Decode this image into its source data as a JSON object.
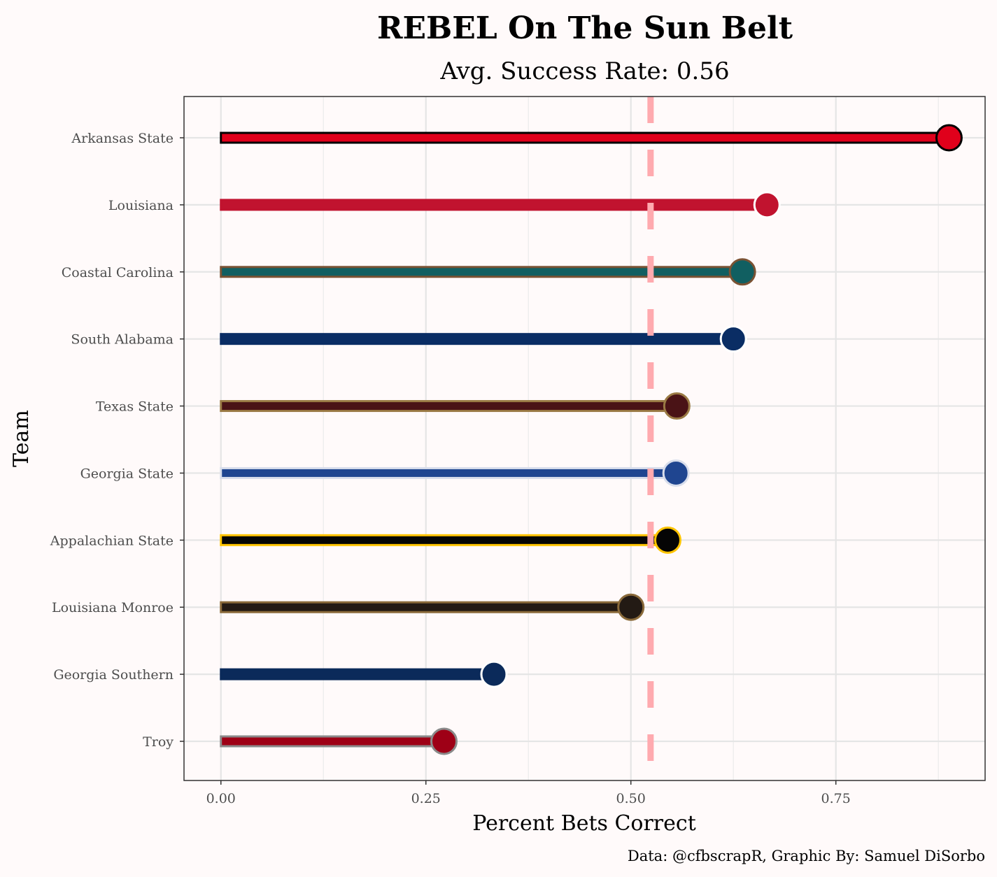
{
  "chart_data": {
    "type": "bar",
    "orientation": "horizontal",
    "title": "REBEL On The Sun Belt",
    "subtitle": "Avg. Success Rate: 0.56",
    "xlabel": "Percent Bets Correct",
    "ylabel": "Team",
    "caption": "Data: @cfbscrapR, Graphic By: Samuel DiSorbo",
    "xlim": [
      -0.045,
      0.932
    ],
    "xticks": [
      0,
      0.25,
      0.5,
      0.75
    ],
    "xtick_labels": [
      "0.00",
      "0.25",
      "0.50",
      "0.75"
    ],
    "grid": true,
    "reference_line": {
      "value": 0.524,
      "style": "dashed",
      "color": "#FFAAAF"
    },
    "categories": [
      "Arkansas State",
      "Louisiana",
      "Coastal Carolina",
      "South Alabama",
      "Texas State",
      "Georgia State",
      "Appalachian State",
      "Louisiana Monroe",
      "Georgia Southern",
      "Troy"
    ],
    "values": [
      0.888,
      0.666,
      0.636,
      0.625,
      0.556,
      0.555,
      0.545,
      0.5,
      0.333,
      0.272
    ],
    "fill_colors": [
      "#E0001B",
      "#C1132F",
      "#115F61",
      "#0A2D64",
      "#4A1316",
      "#1F4590",
      "#050505",
      "#231A14",
      "#0B2A5A",
      "#9E0016"
    ],
    "outline_colors": [
      "#000000",
      "#C1132F",
      "#7A5233",
      "#0A2D64",
      "#9A7A44",
      "#D8DDEB",
      "#FFC400",
      "#8A6A3A",
      "#0B2A5A",
      "#8A8A8A"
    ]
  }
}
